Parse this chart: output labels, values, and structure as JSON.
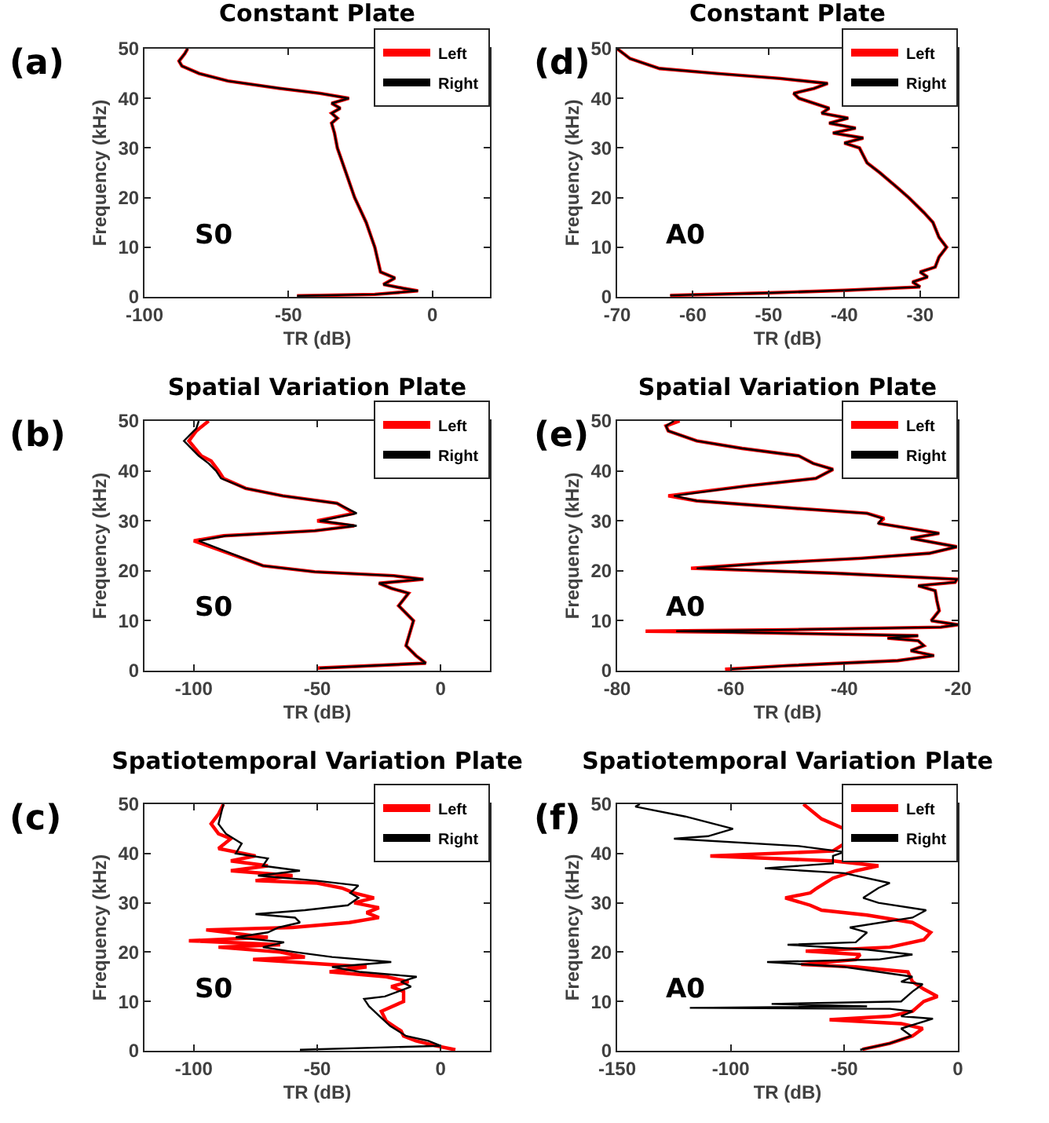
{
  "chart_data": [
    {
      "type": "line",
      "title": "Constant Plate",
      "xlabel": "TR (dB)",
      "ylabel": "Frequency (kHz)",
      "xlim": [
        -100,
        20
      ],
      "xticks": [
        -100,
        -50,
        0
      ],
      "ylim": [
        0,
        50
      ],
      "yticks": [
        0,
        10,
        20,
        30,
        40,
        50
      ],
      "legend": "top right",
      "annotations": [
        "(a)",
        "S0"
      ],
      "series": [
        {
          "name": "Left",
          "color": "#ff0000",
          "x": [
            -47,
            -20,
            -5,
            -10,
            -17,
            -13,
            -18,
            -20,
            -23,
            -27,
            -30,
            -33,
            -34,
            -35,
            -33,
            -35,
            -32,
            -35,
            -29,
            -39,
            -53,
            -71,
            -81,
            -87,
            -88,
            -86,
            -85
          ],
          "values": [
            0.2,
            0.5,
            1.2,
            1.7,
            2.5,
            3.8,
            5,
            10,
            15,
            20,
            25,
            30,
            33,
            35,
            36,
            37,
            38,
            39,
            40,
            41,
            42,
            43.5,
            45,
            46.5,
            47.5,
            49,
            50
          ]
        },
        {
          "name": "Right",
          "color": "#000000",
          "x": [
            -47,
            -20,
            -5,
            -10,
            -17,
            -13,
            -18,
            -20,
            -23,
            -27,
            -30,
            -33,
            -34,
            -35,
            -33,
            -35,
            -32,
            -35,
            -29,
            -39,
            -53,
            -71,
            -81,
            -87,
            -88,
            -86,
            -85
          ],
          "values": [
            0.2,
            0.5,
            1.2,
            1.7,
            2.5,
            3.8,
            5,
            10,
            15,
            20,
            25,
            30,
            33,
            35,
            36,
            37,
            38,
            39,
            40,
            41,
            42,
            43.5,
            45,
            46.5,
            47.5,
            49,
            50
          ]
        }
      ]
    },
    {
      "type": "line",
      "title": "Constant Plate",
      "xlabel": "TR (dB)",
      "ylabel": "Frequency (kHz)",
      "xlim": [
        -70,
        -25
      ],
      "xticks": [
        -70,
        -60,
        -50,
        -40,
        -30
      ],
      "ylim": [
        0,
        50
      ],
      "yticks": [
        0,
        10,
        20,
        30,
        40,
        50
      ],
      "legend": "top right",
      "annotations": [
        "(d)",
        "A0"
      ],
      "series": [
        {
          "name": "Left",
          "color": "#ff0000",
          "x": [
            -63,
            -50,
            -40,
            -30,
            -31,
            -29,
            -30,
            -28,
            -27.5,
            -26.5,
            -27.5,
            -28.3,
            -29.5,
            -31.5,
            -33,
            -35.3,
            -37,
            -38,
            -40,
            -37.5,
            -41.5,
            -38.5,
            -42,
            -39.5,
            -43,
            -42,
            -46,
            -46.7,
            -44,
            -42.2,
            -48.5,
            -56.8,
            -64.4,
            -68.3,
            -70
          ],
          "values": [
            0.3,
            0.8,
            1.3,
            2,
            3,
            4,
            5,
            6,
            8,
            10,
            12,
            15,
            17,
            20,
            22,
            25,
            27,
            30,
            31,
            32,
            33,
            34,
            35,
            36,
            37,
            38,
            40,
            41,
            42,
            43,
            44,
            45,
            46,
            48,
            50
          ]
        },
        {
          "name": "Right",
          "color": "#000000",
          "x": [
            -63,
            -50,
            -40,
            -30,
            -31,
            -29,
            -30,
            -28,
            -27.5,
            -26.5,
            -27.5,
            -28.3,
            -29.5,
            -31.5,
            -33,
            -35.3,
            -37,
            -38,
            -40,
            -37.5,
            -41.5,
            -38.5,
            -42,
            -39.5,
            -43,
            -42,
            -46,
            -46.7,
            -44,
            -42.2,
            -48.5,
            -56.8,
            -64.4,
            -68.3,
            -70
          ],
          "values": [
            0.3,
            0.8,
            1.3,
            2,
            3,
            4,
            5,
            6,
            8,
            10,
            12,
            15,
            17,
            20,
            22,
            25,
            27,
            30,
            31,
            32,
            33,
            34,
            35,
            36,
            37,
            38,
            40,
            41,
            42,
            43,
            44,
            45,
            46,
            48,
            50
          ]
        }
      ]
    },
    {
      "type": "line",
      "title": "Spatial Variation Plate",
      "xlabel": "TR (dB)",
      "ylabel": "Frequency (kHz)",
      "xlim": [
        -120,
        20
      ],
      "xticks": [
        -100,
        -50,
        0
      ],
      "ylim": [
        0,
        50
      ],
      "yticks": [
        0,
        10,
        20,
        30,
        40,
        50
      ],
      "legend": "top right",
      "annotations": [
        "(b)",
        "S0"
      ],
      "series": [
        {
          "name": "Left",
          "color": "#ff0000",
          "x": [
            -50,
            -6,
            -10,
            -14,
            -11,
            -17,
            -13,
            -20,
            -25,
            -7,
            -19,
            -51,
            -72,
            -86,
            -100,
            -88,
            -51,
            -35,
            -50,
            -35,
            -42,
            -64,
            -79,
            -88,
            -90,
            -93,
            -97,
            -102,
            -99,
            -94
          ],
          "values": [
            0.5,
            1.5,
            3,
            5,
            10,
            13,
            15.5,
            16.5,
            17.5,
            18.3,
            19,
            19.8,
            21,
            23.5,
            26,
            27,
            28,
            29,
            30,
            31.5,
            33.5,
            35,
            36.5,
            38.5,
            40,
            42,
            43,
            46,
            48,
            50
          ]
        },
        {
          "name": "Right",
          "color": "#000000",
          "x": [
            -49,
            -6,
            -10,
            -14,
            -11,
            -17,
            -13,
            -20,
            -25,
            -7,
            -19,
            -51,
            -72,
            -85,
            -98,
            -87,
            -51,
            -34,
            -49,
            -34,
            -42,
            -64,
            -79,
            -89,
            -91,
            -94,
            -98,
            -104,
            -99,
            -98
          ],
          "values": [
            0.5,
            1.5,
            3,
            5,
            10,
            13,
            15.5,
            16.5,
            17.5,
            18.3,
            19,
            19.8,
            21,
            23.5,
            26,
            27,
            28,
            29,
            30,
            31.5,
            33.5,
            35,
            36.5,
            38.5,
            40,
            41.5,
            43,
            46,
            48.5,
            50
          ]
        }
      ]
    },
    {
      "type": "line",
      "title": "Spatial Variation Plate",
      "xlabel": "TR (dB)",
      "ylabel": "Frequency (kHz)",
      "xlim": [
        -80,
        -20
      ],
      "xticks": [
        -80,
        -60,
        -40,
        -20
      ],
      "ylim": [
        0,
        50
      ],
      "yticks": [
        0,
        10,
        20,
        30,
        40,
        50
      ],
      "legend": "top right",
      "annotations": [
        "(e)",
        "A0"
      ],
      "series": [
        {
          "name": "Left",
          "color": "#ff0000",
          "x": [
            -61,
            -50,
            -30.6,
            -24.2,
            -28.3,
            -26,
            -27,
            -32.4,
            -27,
            -59.6,
            -75,
            -50,
            -23,
            -20,
            -24.7,
            -23.3,
            -23.7,
            -24,
            -27,
            -20.5,
            -20.2,
            -41.5,
            -67,
            -54,
            -37,
            -25,
            -20.2,
            -28.3,
            -23.3,
            -34,
            -33,
            -36,
            -48.7,
            -66,
            -71,
            -57,
            -45,
            -42,
            -45.5,
            -48,
            -58,
            -66,
            -71,
            -71.4,
            -69
          ],
          "values": [
            0.3,
            1,
            2,
            3,
            4,
            5,
            6,
            6.5,
            7,
            7.7,
            7.9,
            8.2,
            8.7,
            9.2,
            10,
            12,
            14,
            16,
            17,
            17.7,
            18.3,
            19.5,
            20.5,
            21.5,
            22.5,
            23.5,
            24.8,
            26.5,
            27.5,
            29.5,
            30.5,
            31.5,
            32.5,
            34,
            35,
            37,
            38.5,
            40.3,
            41.5,
            43,
            44.5,
            46,
            48,
            49,
            50
          ]
        },
        {
          "name": "Right",
          "color": "#000000",
          "x": [
            -60,
            -50,
            -30.6,
            -24.2,
            -28.3,
            -26,
            -27,
            -32.4,
            -27,
            -59.6,
            -69.6,
            -50,
            -23,
            -20,
            -24.7,
            -23.3,
            -23.7,
            -24,
            -27,
            -20.5,
            -20.2,
            -41.5,
            -66,
            -54,
            -37,
            -25,
            -20.2,
            -28.3,
            -23.3,
            -34,
            -33.3,
            -36,
            -48.7,
            -66,
            -70,
            -57,
            -45,
            -42,
            -45.5,
            -48,
            -58,
            -66,
            -71,
            -71.4,
            -70
          ],
          "values": [
            0.3,
            1,
            2,
            3,
            4,
            5,
            6,
            6.5,
            7,
            7.7,
            7.9,
            8.2,
            8.7,
            9.2,
            10,
            12,
            14,
            16,
            17,
            17.7,
            18.3,
            19.5,
            20.5,
            21.5,
            22.5,
            23.5,
            24.8,
            26.5,
            27.5,
            29.5,
            30.5,
            31.5,
            32.5,
            34,
            35,
            37,
            38.5,
            40.3,
            41.5,
            43,
            44.5,
            46,
            48,
            49,
            50
          ]
        }
      ]
    },
    {
      "type": "line",
      "title": "Spatiotemporal Variation Plate",
      "xlabel": "TR (dB)",
      "ylabel": "Frequency (kHz)",
      "xlim": [
        -120,
        20
      ],
      "xticks": [
        -100,
        -50,
        0
      ],
      "ylim": [
        0,
        50
      ],
      "yticks": [
        0,
        10,
        20,
        30,
        40,
        50
      ],
      "legend": "top right",
      "annotations": [
        "(c)",
        "S0"
      ],
      "series": [
        {
          "name": "Left",
          "color": "#ff0000",
          "x": [
            6,
            -2,
            -10,
            -15,
            -16,
            -22,
            -24,
            -15,
            -15,
            -20,
            -13,
            -22,
            -45,
            -30,
            -60,
            -76,
            -55,
            -65,
            -90,
            -65,
            -102,
            -70,
            -95,
            -60,
            -37,
            -25,
            -30,
            -25,
            -35,
            -27,
            -35,
            -40,
            -50,
            -75,
            -60,
            -85,
            -70,
            -85,
            -75,
            -90,
            -85,
            -90,
            -93,
            -90,
            -88
          ],
          "values": [
            0.2,
            1,
            2,
            3,
            4,
            6,
            8,
            10,
            12,
            13,
            14,
            15,
            16,
            17,
            18,
            18.5,
            19,
            20,
            21,
            21.5,
            22.3,
            23,
            24.5,
            25,
            26,
            27,
            28,
            29,
            30,
            31,
            32,
            33,
            34,
            34.5,
            35.5,
            36.5,
            37.5,
            38.5,
            39.5,
            41,
            43,
            44,
            46,
            48,
            50
          ]
        },
        {
          "name": "Right",
          "color": "#000000",
          "x": [
            -57,
            0,
            -5,
            -14,
            -20.4,
            -24.7,
            -29,
            -31,
            -22.6,
            -12,
            -16,
            -9.7,
            -33,
            -44,
            -20,
            -44,
            -59,
            -72,
            -63.4,
            -83,
            -70,
            -65.6,
            -57,
            -59,
            -75,
            -55,
            -37.6,
            -33.3,
            -36.6,
            -33.3,
            -50.6,
            -74,
            -57,
            -72,
            -70,
            -83,
            -80.6,
            -87,
            -90,
            -89,
            -88
          ],
          "values": [
            0.2,
            1,
            2,
            3,
            5,
            7,
            9,
            10.5,
            11,
            13,
            14,
            15,
            16,
            17,
            18,
            19,
            20,
            21,
            22,
            23,
            24,
            25,
            26,
            27,
            27.7,
            28.5,
            29.5,
            31,
            32,
            33.5,
            34.5,
            35.5,
            36.5,
            37.5,
            39,
            40,
            42,
            44,
            46,
            48,
            50
          ]
        }
      ]
    },
    {
      "type": "line",
      "title": "Spatiotemporal Variation Plate",
      "xlabel": "TR (dB)",
      "ylabel": "Frequency (kHz)",
      "xlim": [
        -150,
        0
      ],
      "xticks": [
        -150,
        -100,
        -50,
        0
      ],
      "ylim": [
        0,
        50
      ],
      "yticks": [
        0,
        10,
        20,
        30,
        40,
        50
      ],
      "legend": "top right",
      "annotations": [
        "(f)",
        "A0"
      ],
      "series": [
        {
          "name": "Left",
          "color": "#ff0000",
          "x": [
            -42,
            -30,
            -20,
            -15.5,
            -25,
            -56.5,
            -30,
            -20,
            -15,
            -9,
            -15,
            -20,
            -22,
            -45,
            -69,
            -45,
            -43,
            -67,
            -30,
            -15,
            -12,
            -20,
            -40,
            -60,
            -65,
            -76,
            -65,
            -62,
            -55,
            -45,
            -35,
            -55,
            -109,
            -55,
            -50,
            -50,
            -60,
            -68
          ],
          "values": [
            0.3,
            1.5,
            3,
            4.5,
            5.5,
            6.3,
            7,
            8,
            10,
            11,
            12.5,
            14,
            16,
            17,
            17.5,
            18.5,
            19.5,
            20.2,
            21,
            22.5,
            24,
            26,
            27.5,
            28.5,
            29.5,
            31,
            32,
            33,
            35,
            36.5,
            37.5,
            38.5,
            39.5,
            40.5,
            42,
            45,
            47,
            50
          ]
        },
        {
          "name": "Right",
          "color": "#000000",
          "x": [
            -43,
            -30,
            -20.5,
            -25,
            -11,
            -25,
            -20,
            -30,
            -118,
            -40,
            -82,
            -25,
            -20,
            -15.5,
            -25,
            -20,
            -50,
            -84,
            -35,
            -20,
            -40,
            -75,
            -45,
            -40,
            -47.6,
            -20,
            -14,
            -35,
            -41.7,
            -35,
            -30,
            -50,
            -85,
            -55,
            -55,
            -50,
            -70,
            -125,
            -110,
            -99,
            -120,
            -142,
            -140
          ],
          "values": [
            0.2,
            1.5,
            3,
            4.5,
            6.5,
            7,
            8,
            8.5,
            8.7,
            9,
            9.5,
            10,
            12,
            13.5,
            14,
            15,
            17,
            18,
            18.5,
            19.5,
            20.5,
            21.5,
            22,
            24,
            25,
            27,
            28.5,
            30,
            31,
            33,
            34,
            36,
            37,
            38,
            39.5,
            40.3,
            41.5,
            43,
            43.5,
            45,
            47.5,
            49.5,
            50
          ]
        }
      ]
    }
  ]
}
